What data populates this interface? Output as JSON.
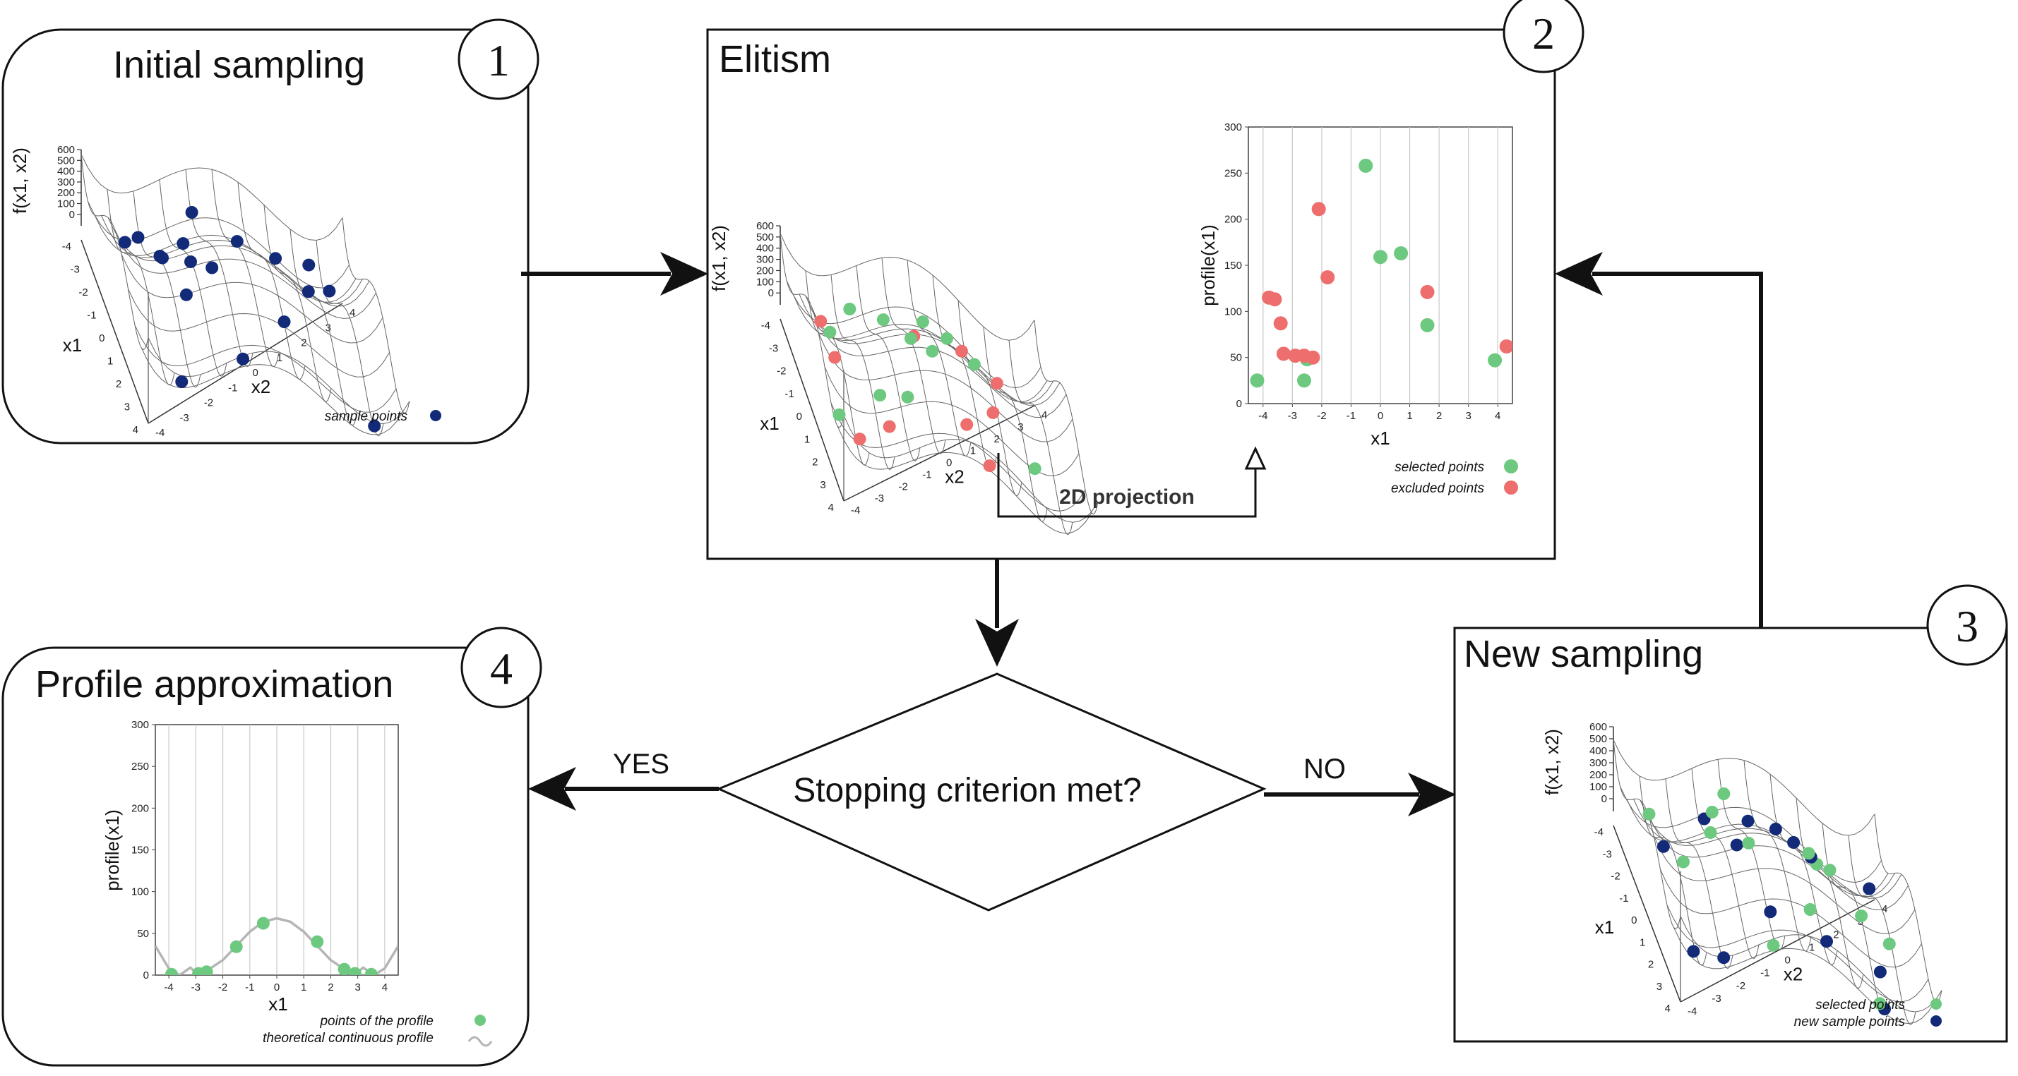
{
  "panel1": {
    "number": "1",
    "title": "Initial sampling",
    "zlabel": "f(x1, x2)",
    "xlabel": "x1",
    "ylabel": "x2",
    "z_ticks": [
      "600",
      "500",
      "400",
      "300",
      "200",
      "100",
      "0"
    ],
    "x1_ticks": [
      "-4",
      "-3",
      "-2",
      "-1",
      "0",
      "1",
      "2",
      "3",
      "4"
    ],
    "x2_ticks": [
      "-4",
      "-3",
      "-2",
      "-1",
      "0",
      "1",
      "2",
      "3",
      "4"
    ],
    "legend": [
      "sample points"
    ]
  },
  "panel2": {
    "number": "2",
    "title": "Elitism",
    "zlabel": "f(x1, x2)",
    "xlabel": "x1",
    "ylabel": "x2",
    "z_ticks": [
      "600",
      "500",
      "400",
      "300",
      "200",
      "100",
      "0"
    ],
    "x1_ticks": [
      "-4",
      "-3",
      "-2",
      "-1",
      "0",
      "1",
      "2",
      "3",
      "4"
    ],
    "x2_ticks": [
      "-4",
      "-3",
      "-2",
      "-1",
      "0",
      "1",
      "2",
      "3",
      "4"
    ],
    "projection_label": "2D projection",
    "profile_ylabel": "profile(x1)",
    "profile_xlabel": "x1",
    "profile_y_ticks": [
      "300",
      "250",
      "200",
      "150",
      "100",
      "50",
      "0"
    ],
    "profile_x_ticks": [
      "-4",
      "-3",
      "-2",
      "-1",
      "0",
      "1",
      "2",
      "3",
      "4"
    ],
    "legend": [
      "selected points",
      "excluded points"
    ]
  },
  "panel3": {
    "number": "3",
    "title": "New sampling",
    "zlabel": "f(x1, x2)",
    "xlabel": "x1",
    "ylabel": "x2",
    "z_ticks": [
      "600",
      "500",
      "400",
      "300",
      "200",
      "100",
      "0"
    ],
    "x1_ticks": [
      "-4",
      "-3",
      "-2",
      "-1",
      "0",
      "1",
      "2",
      "3",
      "4"
    ],
    "x2_ticks": [
      "-4",
      "-3",
      "-2",
      "-1",
      "0",
      "1",
      "2",
      "3",
      "4"
    ],
    "legend": [
      "selected points",
      "new sample points"
    ]
  },
  "panel4": {
    "number": "4",
    "title": "Profile approximation",
    "ylabel": "profile(x1)",
    "xlabel": "x1",
    "y_ticks": [
      "300",
      "250",
      "200",
      "150",
      "100",
      "50",
      "0"
    ],
    "x_ticks": [
      "-4",
      "-3",
      "-2",
      "-1",
      "0",
      "1",
      "2",
      "3",
      "4"
    ],
    "legend": [
      "points of the profile",
      "theoretical continuous profile"
    ]
  },
  "decision": {
    "question": "Stopping criterion  met?",
    "yes": "YES",
    "no": "NO"
  },
  "colors": {
    "selected": "#6cc97f",
    "excluded": "#ee6d6d",
    "sample": "#122a78",
    "curve": "#b5b5b5"
  },
  "chart_data": [
    {
      "type": "scatter",
      "id": "elitism-profile",
      "xlabel": "x1",
      "ylabel": "profile(x1)",
      "xlim": [
        -4.5,
        4.5
      ],
      "ylim": [
        0,
        300
      ],
      "series": [
        {
          "name": "selected points",
          "x": [
            -4.2,
            -2.6,
            -2.5,
            -0.5,
            0.0,
            0.7,
            1.6,
            3.9
          ],
          "y": [
            25,
            25,
            48,
            258,
            159,
            163,
            85,
            47
          ]
        },
        {
          "name": "excluded points",
          "x": [
            -3.8,
            -3.6,
            -3.4,
            -3.3,
            -2.9,
            -2.6,
            -2.3,
            -2.1,
            -1.8,
            1.6,
            4.3
          ],
          "y": [
            115,
            113,
            87,
            54,
            52,
            52,
            50,
            211,
            137,
            121,
            62
          ]
        }
      ]
    },
    {
      "type": "scatter",
      "id": "profile-approximation",
      "xlabel": "x1",
      "ylabel": "profile(x1)",
      "xlim": [
        -4.5,
        4.5
      ],
      "ylim": [
        0,
        300
      ],
      "series": [
        {
          "name": "points of the profile",
          "x": [
            -3.9,
            -2.9,
            -2.6,
            -1.5,
            -0.5,
            1.5,
            2.5,
            2.9,
            3.5
          ],
          "y": [
            1,
            2,
            4,
            34,
            62,
            40,
            7,
            2,
            1
          ]
        },
        {
          "name": "theoretical continuous profile",
          "x": [
            -4.5,
            -4.0,
            -3.6,
            -3.2,
            -2.9,
            -2.6,
            -2.0,
            -1.5,
            -1.0,
            -0.5,
            0.0,
            0.5,
            1.0,
            1.5,
            2.0,
            2.6,
            2.9,
            3.2,
            3.6,
            4.0,
            4.5
          ],
          "y": [
            35,
            8,
            0,
            9,
            0,
            5,
            18,
            35,
            52,
            64,
            68,
            64,
            52,
            35,
            18,
            5,
            0,
            9,
            0,
            8,
            35
          ]
        }
      ]
    }
  ]
}
